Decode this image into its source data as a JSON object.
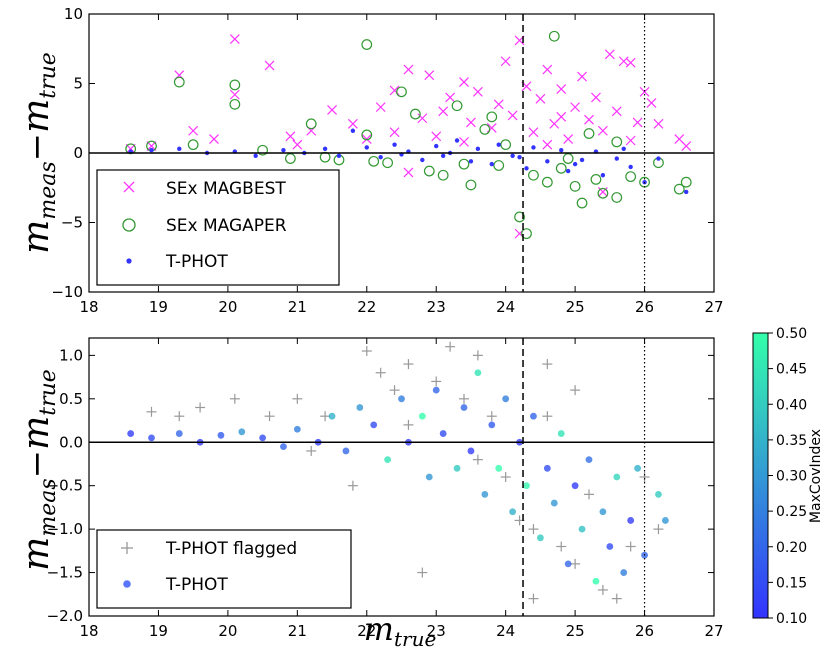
{
  "chart_data": [
    {
      "type": "scatter",
      "panel": "top",
      "ylabel": {
        "main": "m",
        "sub1": "meas",
        "sep": "−",
        "main2": "m",
        "sub2": "true"
      },
      "xlim": [
        18,
        27
      ],
      "ylim": [
        -10,
        10
      ],
      "xticks": [
        "18",
        "19",
        "20",
        "21",
        "22",
        "23",
        "24",
        "25",
        "26",
        "27"
      ],
      "yticks": [
        "10",
        "5",
        "0",
        "−5",
        "−10"
      ],
      "reference_lines": {
        "hline_y": 0,
        "dashed_x": 24.25,
        "dotted_x": 26.0
      },
      "legend_position": "lower-left",
      "series": [
        {
          "name": "SEx MAGBEST",
          "marker": "x",
          "color": "#ff33ff",
          "points": [
            [
              18.6,
              0.3
            ],
            [
              18.9,
              0.5
            ],
            [
              19.3,
              5.6
            ],
            [
              19.5,
              1.6
            ],
            [
              19.8,
              1.0
            ],
            [
              20.1,
              8.2
            ],
            [
              20.1,
              4.2
            ],
            [
              20.6,
              6.3
            ],
            [
              20.9,
              1.2
            ],
            [
              21.2,
              1.6
            ],
            [
              21.5,
              3.1
            ],
            [
              21.8,
              2.1
            ],
            [
              22.0,
              1.0
            ],
            [
              22.2,
              3.3
            ],
            [
              22.4,
              4.5
            ],
            [
              22.6,
              6.0
            ],
            [
              22.8,
              2.5
            ],
            [
              22.9,
              5.6
            ],
            [
              23.1,
              3.0
            ],
            [
              23.2,
              4.0
            ],
            [
              23.4,
              5.1
            ],
            [
              23.5,
              2.2
            ],
            [
              23.6,
              4.4
            ],
            [
              23.8,
              1.8
            ],
            [
              23.9,
              3.5
            ],
            [
              24.0,
              6.6
            ],
            [
              24.1,
              2.7
            ],
            [
              24.2,
              8.1
            ],
            [
              24.3,
              4.8
            ],
            [
              24.4,
              1.5
            ],
            [
              24.5,
              3.9
            ],
            [
              24.6,
              6.0
            ],
            [
              24.7,
              2.1
            ],
            [
              24.8,
              4.6
            ],
            [
              24.9,
              1.0
            ],
            [
              25.0,
              3.3
            ],
            [
              25.1,
              5.5
            ],
            [
              25.2,
              2.4
            ],
            [
              25.3,
              4.0
            ],
            [
              25.4,
              1.6
            ],
            [
              25.5,
              7.1
            ],
            [
              25.6,
              3.0
            ],
            [
              25.7,
              6.6
            ],
            [
              25.8,
              6.5
            ],
            [
              25.9,
              2.2
            ],
            [
              26.0,
              4.4
            ],
            [
              26.1,
              3.6
            ],
            [
              26.2,
              2.1
            ],
            [
              26.5,
              1.0
            ],
            [
              26.6,
              0.5
            ],
            [
              25.4,
              -2.8
            ],
            [
              24.2,
              -5.8
            ],
            [
              22.6,
              -1.4
            ],
            [
              23.4,
              0.8
            ],
            [
              24.6,
              0.6
            ],
            [
              25.8,
              0.9
            ],
            [
              21.0,
              0.6
            ],
            [
              22.4,
              1.5
            ],
            [
              23.0,
              1.2
            ],
            [
              24.8,
              2.6
            ]
          ]
        },
        {
          "name": "SEx MAGAPER",
          "marker": "circle-open",
          "color": "#339933",
          "points": [
            [
              18.6,
              0.3
            ],
            [
              18.9,
              0.5
            ],
            [
              19.3,
              5.1
            ],
            [
              19.5,
              0.6
            ],
            [
              20.1,
              4.9
            ],
            [
              20.1,
              3.5
            ],
            [
              20.5,
              0.2
            ],
            [
              20.9,
              -0.4
            ],
            [
              21.2,
              2.1
            ],
            [
              21.6,
              -0.5
            ],
            [
              22.0,
              7.8
            ],
            [
              22.0,
              1.3
            ],
            [
              22.3,
              -0.7
            ],
            [
              22.5,
              4.4
            ],
            [
              22.7,
              2.8
            ],
            [
              22.9,
              -1.3
            ],
            [
              23.1,
              -1.6
            ],
            [
              23.3,
              3.4
            ],
            [
              23.5,
              -2.3
            ],
            [
              23.7,
              1.7
            ],
            [
              23.9,
              -0.9
            ],
            [
              24.0,
              0.6
            ],
            [
              24.2,
              -4.6
            ],
            [
              24.3,
              -5.8
            ],
            [
              24.4,
              -1.6
            ],
            [
              24.6,
              -2.1
            ],
            [
              24.7,
              8.4
            ],
            [
              24.8,
              -1.1
            ],
            [
              25.0,
              -2.4
            ],
            [
              25.1,
              -3.6
            ],
            [
              25.3,
              -1.9
            ],
            [
              25.4,
              -2.9
            ],
            [
              25.6,
              -3.2
            ],
            [
              25.8,
              -1.7
            ],
            [
              26.0,
              -2.1
            ],
            [
              26.2,
              -0.7
            ],
            [
              26.5,
              -2.6
            ],
            [
              26.6,
              -2.1
            ],
            [
              23.4,
              -0.8
            ],
            [
              22.1,
              -0.6
            ],
            [
              21.4,
              -0.3
            ],
            [
              24.9,
              -0.4
            ],
            [
              25.6,
              0.8
            ],
            [
              23.8,
              2.6
            ],
            [
              25.2,
              1.4
            ]
          ]
        },
        {
          "name": "T-PHOT",
          "marker": "dot",
          "color": "#3333ff",
          "points": [
            [
              18.6,
              0.1
            ],
            [
              18.9,
              0.2
            ],
            [
              19.3,
              0.3
            ],
            [
              19.7,
              0.0
            ],
            [
              20.1,
              0.1
            ],
            [
              20.4,
              -0.2
            ],
            [
              20.8,
              0.2
            ],
            [
              21.1,
              0.0
            ],
            [
              21.4,
              0.3
            ],
            [
              21.6,
              -0.2
            ],
            [
              21.8,
              1.6
            ],
            [
              22.0,
              0.4
            ],
            [
              22.2,
              -0.3
            ],
            [
              22.4,
              0.6
            ],
            [
              22.6,
              0.1
            ],
            [
              22.8,
              -0.5
            ],
            [
              23.0,
              0.5
            ],
            [
              23.1,
              -0.2
            ],
            [
              23.3,
              0.9
            ],
            [
              23.5,
              -0.6
            ],
            [
              23.6,
              0.3
            ],
            [
              23.8,
              -0.8
            ],
            [
              23.9,
              0.6
            ],
            [
              24.1,
              -0.2
            ],
            [
              24.3,
              -1.1
            ],
            [
              24.4,
              0.4
            ],
            [
              24.6,
              -0.6
            ],
            [
              24.8,
              0.2
            ],
            [
              24.9,
              -1.3
            ],
            [
              25.1,
              -0.5
            ],
            [
              25.3,
              0.1
            ],
            [
              25.4,
              -1.6
            ],
            [
              25.6,
              -0.4
            ],
            [
              25.8,
              -1.0
            ],
            [
              26.0,
              -2.1
            ],
            [
              26.2,
              -0.4
            ],
            [
              26.6,
              -2.8
            ],
            [
              24.2,
              -0.3
            ],
            [
              23.2,
              0.0
            ],
            [
              22.5,
              -0.1
            ],
            [
              25.0,
              -0.8
            ],
            [
              25.7,
              0.3
            ]
          ]
        }
      ]
    },
    {
      "type": "scatter",
      "panel": "bottom",
      "xlabel": {
        "main": "m",
        "sub": "true"
      },
      "ylabel": {
        "main": "m",
        "sub1": "meas",
        "sep": "−",
        "main2": "m",
        "sub2": "true"
      },
      "xlim": [
        18,
        27
      ],
      "ylim": [
        -2.0,
        1.2
      ],
      "xticks": [
        "18",
        "19",
        "20",
        "21",
        "22",
        "23",
        "24",
        "25",
        "26",
        "27"
      ],
      "yticks": [
        "1.0",
        "0.5",
        "0.0",
        "−0.5",
        "−1.0",
        "−1.5",
        "−2.0"
      ],
      "reference_lines": {
        "hline_y": 0,
        "dashed_x": 24.25,
        "dotted_x": 26.0
      },
      "legend_position": "lower-left",
      "colorbar": {
        "label": "MaxCovIndex",
        "range": [
          0.1,
          0.5
        ],
        "ticks": [
          "0.50",
          "0.45",
          "0.40",
          "0.35",
          "0.30",
          "0.25",
          "0.20",
          "0.15",
          "0.10"
        ],
        "colors": [
          "#3333ff",
          "#33ffaa"
        ]
      },
      "series": [
        {
          "name": "T-PHOT flagged",
          "marker": "plus",
          "color": "#999999",
          "points": [
            [
              18.9,
              0.35
            ],
            [
              19.3,
              0.3
            ],
            [
              19.6,
              0.4
            ],
            [
              20.1,
              0.5
            ],
            [
              20.6,
              0.3
            ],
            [
              21.0,
              0.5
            ],
            [
              21.4,
              0.3
            ],
            [
              21.8,
              -0.5
            ],
            [
              22.0,
              1.05
            ],
            [
              22.2,
              0.8
            ],
            [
              22.4,
              0.6
            ],
            [
              22.6,
              0.9
            ],
            [
              22.8,
              -1.5
            ],
            [
              23.0,
              0.7
            ],
            [
              23.2,
              1.1
            ],
            [
              23.4,
              0.5
            ],
            [
              23.6,
              1.0
            ],
            [
              23.8,
              0.3
            ],
            [
              24.0,
              -0.4
            ],
            [
              24.2,
              -0.9
            ],
            [
              24.4,
              -1.0
            ],
            [
              24.6,
              0.3
            ],
            [
              24.8,
              -1.2
            ],
            [
              25.0,
              -1.4
            ],
            [
              25.2,
              -0.6
            ],
            [
              25.4,
              -1.7
            ],
            [
              25.6,
              -1.8
            ],
            [
              25.8,
              -1.2
            ],
            [
              26.0,
              -0.4
            ],
            [
              26.2,
              -1.0
            ],
            [
              24.4,
              -1.8
            ],
            [
              23.6,
              -0.2
            ],
            [
              22.6,
              0.2
            ],
            [
              21.2,
              -0.1
            ],
            [
              25.0,
              0.6
            ],
            [
              24.6,
              0.9
            ]
          ]
        },
        {
          "name": "T-PHOT",
          "marker": "dot",
          "color": "#3333ff",
          "points": [
            [
              18.6,
              0.1,
              0.12
            ],
            [
              18.9,
              0.05,
              0.15
            ],
            [
              19.3,
              0.1,
              0.2
            ],
            [
              19.6,
              0.0,
              0.12
            ],
            [
              19.9,
              0.08,
              0.18
            ],
            [
              20.2,
              0.12,
              0.3
            ],
            [
              20.5,
              0.05,
              0.15
            ],
            [
              20.8,
              -0.05,
              0.2
            ],
            [
              21.0,
              0.15,
              0.25
            ],
            [
              21.3,
              0.0,
              0.12
            ],
            [
              21.5,
              0.3,
              0.35
            ],
            [
              21.7,
              -0.1,
              0.2
            ],
            [
              21.9,
              0.4,
              0.3
            ],
            [
              22.1,
              0.2,
              0.15
            ],
            [
              22.3,
              -0.2,
              0.45
            ],
            [
              22.5,
              0.5,
              0.25
            ],
            [
              22.6,
              0.0,
              0.12
            ],
            [
              22.8,
              0.3,
              0.5
            ],
            [
              22.9,
              -0.4,
              0.3
            ],
            [
              23.0,
              0.6,
              0.2
            ],
            [
              23.1,
              0.1,
              0.15
            ],
            [
              23.3,
              -0.3,
              0.4
            ],
            [
              23.4,
              0.4,
              0.2
            ],
            [
              23.5,
              -0.1,
              0.12
            ],
            [
              23.6,
              0.8,
              0.45
            ],
            [
              23.7,
              -0.6,
              0.3
            ],
            [
              23.8,
              0.2,
              0.18
            ],
            [
              23.9,
              -0.3,
              0.5
            ],
            [
              24.0,
              0.5,
              0.25
            ],
            [
              24.1,
              -0.8,
              0.35
            ],
            [
              24.2,
              0.0,
              0.12
            ],
            [
              24.3,
              -0.5,
              0.48
            ],
            [
              24.4,
              0.3,
              0.2
            ],
            [
              24.5,
              -1.1,
              0.4
            ],
            [
              24.6,
              -0.3,
              0.15
            ],
            [
              24.7,
              -0.7,
              0.3
            ],
            [
              24.8,
              0.1,
              0.45
            ],
            [
              24.9,
              -1.4,
              0.2
            ],
            [
              25.0,
              -0.5,
              0.12
            ],
            [
              25.1,
              -1.0,
              0.38
            ],
            [
              25.2,
              -0.2,
              0.22
            ],
            [
              25.3,
              -1.6,
              0.5
            ],
            [
              25.4,
              -0.8,
              0.3
            ],
            [
              25.5,
              -1.2,
              0.15
            ],
            [
              25.6,
              -0.4,
              0.42
            ],
            [
              25.7,
              -1.5,
              0.25
            ],
            [
              25.8,
              -0.9,
              0.12
            ],
            [
              25.9,
              -0.3,
              0.35
            ],
            [
              26.0,
              -1.3,
              0.2
            ],
            [
              26.2,
              -0.6,
              0.4
            ],
            [
              26.3,
              -0.9,
              0.3
            ]
          ]
        }
      ]
    }
  ]
}
